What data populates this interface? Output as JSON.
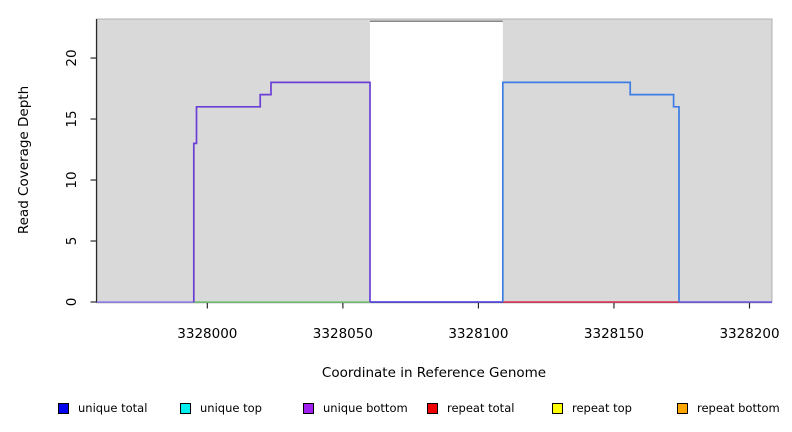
{
  "chart_data": {
    "type": "line",
    "title": "",
    "xlabel": "Coordinate in Reference Genome",
    "ylabel": "Read Coverage Depth",
    "xlim": [
      3327959.3,
      3328208.3
    ],
    "ylim": [
      0,
      23.2
    ],
    "xticks": [
      3328000,
      3328050,
      3328100,
      3328150,
      3328200
    ],
    "yticks": [
      0,
      5,
      10,
      15,
      20
    ],
    "grid": "off",
    "panel_bg": "#d9d9d9",
    "panel_border": "#b0b0b0",
    "axis_color": "#2a2a2a",
    "gap_region": {
      "x_start": 3328060,
      "x_end": 3328109,
      "fill": "#ffffff",
      "top_border_color": "#888888"
    },
    "series": [
      {
        "name": "zero line far left",
        "color": "#9c8cec",
        "points": [
          [
            3327959.3,
            0
          ],
          [
            3327995,
            0
          ]
        ]
      },
      {
        "name": "zero line under left coverage block (green)",
        "color": "#82c882",
        "points": [
          [
            3327995,
            0
          ],
          [
            3328060,
            0
          ]
        ]
      },
      {
        "name": "zero line across gap region",
        "color": "#5b50e0",
        "points": [
          [
            3328060,
            0
          ],
          [
            3328109,
            0
          ]
        ]
      },
      {
        "name": "zero line under right coverage block (red)",
        "color": "#dd4466",
        "points": [
          [
            3328109,
            0
          ],
          [
            3328174,
            0
          ]
        ]
      },
      {
        "name": "zero line far right",
        "color": "#7a66e6",
        "points": [
          [
            3328174,
            0
          ],
          [
            3328208.3,
            0
          ]
        ]
      },
      {
        "name": "left coverage steps (purple, unique bottom)",
        "color": "#6b3fd6",
        "points": [
          [
            3327995,
            0
          ],
          [
            3327995,
            13
          ],
          [
            3327996,
            13
          ],
          [
            3327996,
            16
          ],
          [
            3328019.5,
            16
          ],
          [
            3328019.5,
            17
          ],
          [
            3328023.5,
            17
          ],
          [
            3328023.5,
            18
          ],
          [
            3328060,
            18
          ],
          [
            3328060,
            0
          ]
        ]
      },
      {
        "name": "right coverage steps (blue, unique total)",
        "color": "#3d7de4",
        "points": [
          [
            3328109,
            0
          ],
          [
            3328109,
            18
          ],
          [
            3328156,
            18
          ],
          [
            3328156,
            17
          ],
          [
            3328172,
            17
          ],
          [
            3328172,
            16
          ],
          [
            3328174,
            16
          ],
          [
            3328174,
            0
          ]
        ]
      }
    ],
    "legend_position": "bottom",
    "legend": [
      {
        "label": "unique total",
        "color": "#0000ee"
      },
      {
        "label": "unique top",
        "color": "#00eeee"
      },
      {
        "label": "unique bottom",
        "color": "#a020f0"
      },
      {
        "label": "repeat total",
        "color": "#ee0000"
      },
      {
        "label": "repeat top",
        "color": "#ffff00"
      },
      {
        "label": "repeat bottom",
        "color": "#ffa500"
      }
    ]
  }
}
